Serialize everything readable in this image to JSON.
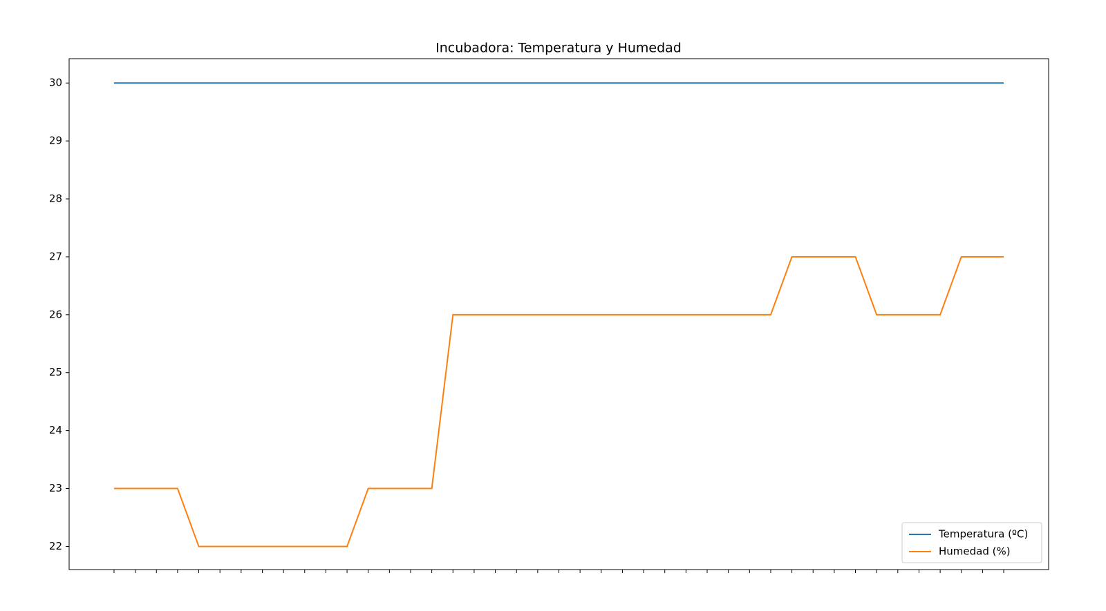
{
  "chart_data": {
    "type": "line",
    "title": "Incubadora: Temperatura y Humedad",
    "categories": [
      null,
      null,
      null,
      null,
      null,
      null,
      null,
      null,
      null,
      null,
      null,
      null,
      null,
      null,
      null,
      null,
      null,
      null,
      null,
      null,
      null,
      null,
      null,
      null,
      null,
      null,
      null,
      null,
      null,
      null,
      null,
      null,
      null,
      null,
      null,
      null,
      null,
      null,
      null,
      null,
      null,
      null,
      null
    ],
    "series": [
      {
        "name": "Temperatura (ºC)",
        "color": "#1f77b4",
        "values": [
          30,
          30,
          30,
          30,
          30,
          30,
          30,
          30,
          30,
          30,
          30,
          30,
          30,
          30,
          30,
          30,
          30,
          30,
          30,
          30,
          30,
          30,
          30,
          30,
          30,
          30,
          30,
          30,
          30,
          30,
          30,
          30,
          30,
          30,
          30,
          30,
          30,
          30,
          30,
          30,
          30,
          30,
          30
        ]
      },
      {
        "name": "Humedad (%)",
        "color": "#ff7f0e",
        "values": [
          23,
          23,
          23,
          23,
          22,
          22,
          22,
          22,
          22,
          22,
          22,
          22,
          23,
          23,
          23,
          23,
          26,
          26,
          26,
          26,
          26,
          26,
          26,
          26,
          26,
          26,
          26,
          26,
          26,
          26,
          26,
          26,
          27,
          27,
          27,
          27,
          26,
          26,
          26,
          26,
          27,
          27,
          27
        ]
      }
    ],
    "ylim": [
      21.6,
      30.42
    ],
    "yticks": [
      22,
      23,
      24,
      25,
      26,
      27,
      28,
      29,
      30
    ],
    "legend": "lower right"
  }
}
